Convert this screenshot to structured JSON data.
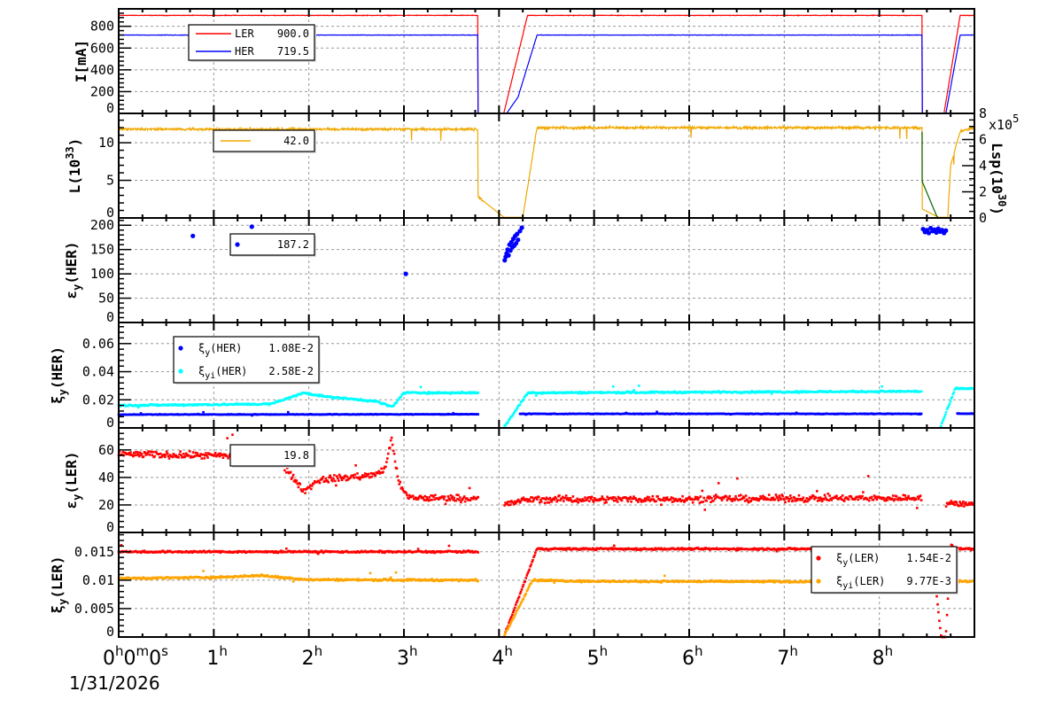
{
  "chart_data": [
    {
      "type": "line",
      "ylabel": {
        "base": "I[mA]",
        "sub": "",
        "sup": "",
        "rest": ""
      },
      "ylim": [
        0,
        960
      ],
      "yticks": [
        "0",
        "200",
        "400",
        "600",
        "800"
      ],
      "ytick_values": [
        0,
        200,
        400,
        600,
        800
      ],
      "series": [
        {
          "name": "LER",
          "color": "#ff0000",
          "kind": "line",
          "points": [
            [
              0,
              900
            ],
            [
              3.78,
              900
            ],
            [
              3.78,
              0
            ],
            [
              4.05,
              0
            ],
            [
              4.3,
              900
            ],
            [
              8.45,
              900
            ],
            [
              8.45,
              0
            ],
            [
              8.68,
              0
            ],
            [
              8.85,
              900
            ],
            [
              9,
              900
            ]
          ]
        },
        {
          "name": "HER",
          "color": "#0000ff",
          "kind": "line",
          "points": [
            [
              0,
              719.5
            ],
            [
              3.78,
              719.5
            ],
            [
              3.78,
              0
            ],
            [
              4.08,
              0
            ],
            [
              4.2,
              150
            ],
            [
              4.4,
              719.5
            ],
            [
              8.45,
              719.5
            ],
            [
              8.45,
              0
            ],
            [
              8.7,
              0
            ],
            [
              8.85,
              719.5
            ],
            [
              9,
              719.5
            ]
          ]
        }
      ],
      "legend": [
        {
          "label": "LER",
          "value": "900.0",
          "color": "#ff0000",
          "marker": "line"
        },
        {
          "label": "HER",
          "value": "719.5",
          "color": "#0000ff",
          "marker": "line"
        }
      ]
    },
    {
      "type": "line",
      "ylabel": {
        "base": "L(10",
        "sub": "",
        "sup": "33",
        "rest": ")"
      },
      "ylim": [
        0,
        13.9
      ],
      "yticks": [
        "0",
        "5",
        "10"
      ],
      "ytick_values": [
        0,
        5,
        10
      ],
      "right_axis": {
        "label": {
          "base": "Lsp(10",
          "sup": "30",
          "rest": ")"
        },
        "multiplier": "x10",
        "multiplier_exp": "5",
        "ylim": [
          0,
          8
        ],
        "yticks": [
          "0",
          "2",
          "4",
          "6",
          "8"
        ],
        "ytick_values": [
          0,
          2,
          4,
          6,
          8
        ]
      },
      "series": [
        {
          "name": "",
          "color": "#f0a800",
          "kind": "line",
          "points": [
            [
              0,
              11.8
            ],
            [
              3.78,
              11.8
            ],
            [
              3.78,
              2.8
            ],
            [
              4.05,
              0.1
            ],
            [
              4.25,
              0.1
            ],
            [
              4.4,
              12
            ],
            [
              8.45,
              12
            ],
            [
              8.45,
              1.2
            ],
            [
              8.62,
              0.1
            ],
            [
              8.72,
              0.1
            ],
            [
              8.75,
              7
            ],
            [
              8.85,
              11.5
            ],
            [
              9,
              12
            ]
          ]
        },
        {
          "name": "",
          "color": "#006400",
          "kind": "line",
          "axis": "right",
          "points": [
            [
              8.45,
              6.6
            ],
            [
              8.45,
              2.8
            ],
            [
              8.6,
              0.2
            ],
            [
              8.62,
              0
            ]
          ]
        }
      ],
      "legend": [
        {
          "label": "",
          "value": "42.0",
          "color": "#f0a800",
          "marker": "line"
        }
      ]
    },
    {
      "type": "scatter",
      "ylabel": {
        "base": "ε",
        "sub": "y",
        "sup": "",
        "rest": "(HER)"
      },
      "ylim": [
        0,
        215
      ],
      "yticks": [
        "0",
        "50",
        "100",
        "150",
        "200"
      ],
      "ytick_values": [
        0,
        50,
        100,
        150,
        200
      ],
      "series": [
        {
          "name": "",
          "color": "#0000ff",
          "kind": "points",
          "points": [
            [
              0.78,
              178
            ],
            [
              1.4,
              197
            ],
            [
              3.02,
              100
            ],
            [
              4.06,
              128
            ],
            [
              4.07,
              135
            ],
            [
              4.08,
              142
            ],
            [
              4.09,
              150
            ],
            [
              4.1,
              138
            ],
            [
              4.11,
              160
            ],
            [
              4.12,
              148
            ],
            [
              4.13,
              165
            ],
            [
              4.14,
              155
            ],
            [
              4.15,
              172
            ],
            [
              4.16,
              158
            ],
            [
              4.17,
              178
            ],
            [
              4.18,
              163
            ],
            [
              4.19,
              182
            ],
            [
              4.2,
              170
            ],
            [
              4.22,
              188
            ],
            [
              4.24,
              195
            ],
            [
              8.46,
              192
            ],
            [
              8.48,
              186
            ],
            [
              8.5,
              190
            ],
            [
              8.52,
              184
            ],
            [
              8.54,
              194
            ],
            [
              8.56,
              188
            ],
            [
              8.58,
              191
            ],
            [
              8.6,
              185
            ],
            [
              8.62,
              193
            ],
            [
              8.64,
              187
            ],
            [
              8.66,
              190
            ],
            [
              8.68,
              184
            ],
            [
              8.7,
              189
            ]
          ]
        }
      ],
      "legend": [
        {
          "label": "",
          "value": "187.2",
          "color": "#0000ff",
          "marker": "dot"
        }
      ]
    },
    {
      "type": "scatter",
      "ylabel": {
        "base": "ξ",
        "sub": "y",
        "sup": "",
        "rest": "(HER)"
      },
      "ylim": [
        0,
        0.075
      ],
      "yticks": [
        "0",
        "0.02",
        "0.04",
        "0.06"
      ],
      "ytick_values": [
        0,
        0.02,
        0.04,
        0.06
      ],
      "series": [
        {
          "name": "ξy(HER)",
          "color": "#0000ff",
          "kind": "dense",
          "points": [
            [
              0,
              0.0095
            ],
            [
              3.78,
              0.0097
            ],
            [
              3.8,
              null
            ],
            [
              4.2,
              null
            ],
            [
              4.22,
              0.01
            ],
            [
              8.45,
              0.01
            ],
            [
              8.47,
              null
            ],
            [
              8.8,
              null
            ],
            [
              8.82,
              0.0102
            ],
            [
              9,
              0.0102
            ]
          ]
        },
        {
          "name": "ξyi(HER)",
          "color": "#00ffff",
          "kind": "dense",
          "points": [
            [
              0,
              0.016
            ],
            [
              1.6,
              0.017
            ],
            [
              1.95,
              0.025
            ],
            [
              2.2,
              0.022
            ],
            [
              2.7,
              0.019
            ],
            [
              2.88,
              0.015
            ],
            [
              3.0,
              0.025
            ],
            [
              3.78,
              0.025
            ],
            [
              3.8,
              null
            ],
            [
              4.03,
              null
            ],
            [
              4.05,
              0.0
            ],
            [
              4.3,
              0.025
            ],
            [
              8.45,
              0.026
            ],
            [
              8.47,
              null
            ],
            [
              8.62,
              null
            ],
            [
              8.64,
              0.0
            ],
            [
              8.8,
              0.028
            ],
            [
              9,
              0.028
            ]
          ]
        }
      ],
      "legend": [
        {
          "label": "ξ",
          "sub": "y",
          "rest": "(HER)",
          "value": "1.08E-2",
          "color": "#0000ff",
          "marker": "dot"
        },
        {
          "label": "ξ",
          "sub": "yi",
          "rest": "(HER)",
          "value": "2.58E-2",
          "color": "#00ffff",
          "marker": "dot"
        }
      ]
    },
    {
      "type": "scatter",
      "ylabel": {
        "base": "ε",
        "sub": "y",
        "sup": "",
        "rest": "(LER)"
      },
      "ylim": [
        0,
        76
      ],
      "yticks": [
        "0",
        "20",
        "40",
        "60"
      ],
      "ytick_values": [
        0,
        20,
        40,
        60
      ],
      "series": [
        {
          "name": "",
          "color": "#ff0000",
          "kind": "dense",
          "points": [
            [
              0,
              57
            ],
            [
              1.65,
              55
            ],
            [
              1.95,
              30
            ],
            [
              2.1,
              38
            ],
            [
              2.7,
              42
            ],
            [
              2.8,
              46
            ],
            [
              2.87,
              68
            ],
            [
              2.95,
              35
            ],
            [
              3.05,
              25
            ],
            [
              3.78,
              25
            ],
            [
              3.8,
              null
            ],
            [
              4.03,
              null
            ],
            [
              4.05,
              20
            ],
            [
              4.3,
              24
            ],
            [
              8.45,
              25
            ],
            [
              8.47,
              null
            ],
            [
              8.68,
              null
            ],
            [
              8.7,
              21
            ],
            [
              9,
              21
            ]
          ]
        }
      ],
      "legend": [
        {
          "label": "",
          "value": "19.8",
          "color": "#ff0000",
          "marker": "none"
        }
      ]
    },
    {
      "type": "scatter",
      "ylabel": {
        "base": "ξ",
        "sub": "y",
        "sup": "",
        "rest": "(LER)"
      },
      "ylim": [
        0,
        0.0184
      ],
      "yticks": [
        "0",
        "0.005",
        "0.01",
        "0.015"
      ],
      "ytick_values": [
        0,
        0.005,
        0.01,
        0.015
      ],
      "series": [
        {
          "name": "ξy(LER)",
          "color": "#ff0000",
          "kind": "dense",
          "points": [
            [
              0,
              0.015
            ],
            [
              3.78,
              0.015
            ],
            [
              3.8,
              null
            ],
            [
              4.03,
              null
            ],
            [
              4.05,
              0.0
            ],
            [
              4.4,
              0.0155
            ],
            [
              8.55,
              0.0155
            ],
            [
              8.65,
              0.0
            ],
            [
              8.7,
              0.0
            ],
            [
              8.75,
              0.0165
            ],
            [
              8.8,
              0.0155
            ],
            [
              9,
              0.0155
            ]
          ]
        },
        {
          "name": "ξyi(LER)",
          "color": "#ffa500",
          "kind": "dense",
          "points": [
            [
              0,
              0.0103
            ],
            [
              1.0,
              0.0105
            ],
            [
              1.5,
              0.0108
            ],
            [
              2.0,
              0.0101
            ],
            [
              3.78,
              0.01
            ],
            [
              3.8,
              null
            ],
            [
              4.03,
              null
            ],
            [
              4.05,
              0.0
            ],
            [
              4.35,
              0.01
            ],
            [
              5.0,
              0.0098
            ],
            [
              8.45,
              0.0097
            ],
            [
              8.46,
              0.0123
            ],
            [
              8.75,
              0.0123
            ],
            [
              8.77,
              0.0098
            ],
            [
              9,
              0.0098
            ]
          ]
        }
      ],
      "legend": [
        {
          "label": "ξ",
          "sub": "y",
          "rest": "(LER)",
          "value": "1.54E-2",
          "color": "#ff0000",
          "marker": "dot"
        },
        {
          "label": "ξ",
          "sub": "yi",
          "rest": "(LER)",
          "value": "9.77E-3",
          "color": "#ffa500",
          "marker": "dot"
        }
      ]
    }
  ],
  "x_axis": {
    "xlim_hours": [
      0,
      9
    ],
    "ticks": [
      {
        "value": 0,
        "parts": [
          [
            "0",
            "h"
          ],
          [
            "0",
            "m"
          ],
          [
            "0",
            "s"
          ]
        ]
      },
      {
        "value": 1,
        "parts": [
          [
            "1",
            "h"
          ]
        ]
      },
      {
        "value": 2,
        "parts": [
          [
            "2",
            "h"
          ]
        ]
      },
      {
        "value": 3,
        "parts": [
          [
            "3",
            "h"
          ]
        ]
      },
      {
        "value": 4,
        "parts": [
          [
            "4",
            "h"
          ]
        ]
      },
      {
        "value": 5,
        "parts": [
          [
            "5",
            "h"
          ]
        ]
      },
      {
        "value": 6,
        "parts": [
          [
            "6",
            "h"
          ]
        ]
      },
      {
        "value": 7,
        "parts": [
          [
            "7",
            "h"
          ]
        ]
      },
      {
        "value": 8,
        "parts": [
          [
            "8",
            "h"
          ]
        ]
      }
    ],
    "date": "1/31/2026"
  },
  "grid": true
}
